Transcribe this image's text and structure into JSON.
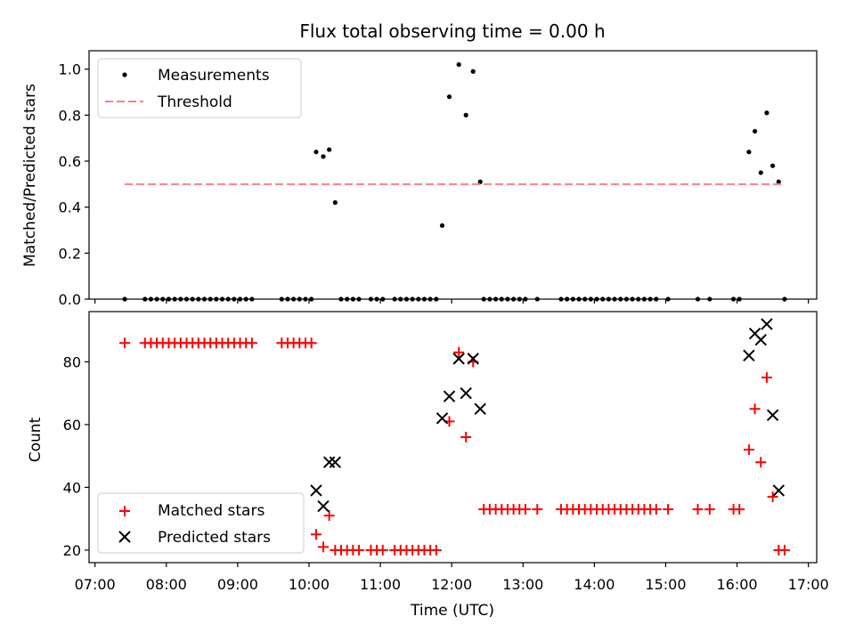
{
  "chart_data": [
    {
      "type": "scatter",
      "title": "Flux total observing time = 0.00 h",
      "xlabel": "",
      "ylabel": "Matched/Predicted stars",
      "xlim": [
        "06:55",
        "17:07"
      ],
      "ylim": [
        0,
        1.08
      ],
      "yticks": [
        "0.0",
        "0.2",
        "0.4",
        "0.6",
        "0.8",
        "1.0"
      ],
      "yticks_values": [
        0,
        0.2,
        0.4,
        0.6,
        0.8,
        1.0
      ],
      "legend": "top-left",
      "grid": false,
      "series": [
        {
          "name": "Measurements",
          "marker": "dot",
          "color": "#000000",
          "points": [
            [
              "07:25",
              0
            ],
            [
              "07:42",
              0
            ],
            [
              "07:47",
              0
            ],
            [
              "07:52",
              0
            ],
            [
              "07:57",
              0
            ],
            [
              "08:02",
              0
            ],
            [
              "08:07",
              0
            ],
            [
              "08:12",
              0
            ],
            [
              "08:17",
              0
            ],
            [
              "08:22",
              0
            ],
            [
              "08:27",
              0
            ],
            [
              "08:32",
              0
            ],
            [
              "08:37",
              0
            ],
            [
              "08:42",
              0
            ],
            [
              "08:47",
              0
            ],
            [
              "08:52",
              0
            ],
            [
              "08:57",
              0
            ],
            [
              "09:02",
              0
            ],
            [
              "09:07",
              0
            ],
            [
              "09:12",
              0
            ],
            [
              "09:37",
              0
            ],
            [
              "09:42",
              0
            ],
            [
              "09:47",
              0
            ],
            [
              "09:52",
              0
            ],
            [
              "09:57",
              0
            ],
            [
              "10:02",
              0
            ],
            [
              "10:06",
              0.64
            ],
            [
              "10:12",
              0.62
            ],
            [
              "10:17",
              0.65
            ],
            [
              "10:22",
              0.42
            ],
            [
              "10:27",
              0
            ],
            [
              "10:32",
              0
            ],
            [
              "10:37",
              0
            ],
            [
              "10:42",
              0
            ],
            [
              "10:52",
              0
            ],
            [
              "10:57",
              0
            ],
            [
              "11:02",
              0
            ],
            [
              "11:12",
              0
            ],
            [
              "11:17",
              0
            ],
            [
              "11:22",
              0
            ],
            [
              "11:27",
              0
            ],
            [
              "11:32",
              0
            ],
            [
              "11:37",
              0
            ],
            [
              "11:42",
              0
            ],
            [
              "11:47",
              0
            ],
            [
              "11:52",
              0.32
            ],
            [
              "11:58",
              0.88
            ],
            [
              "12:06",
              1.02
            ],
            [
              "12:12",
              0.8
            ],
            [
              "12:18",
              0.99
            ],
            [
              "12:24",
              0.51
            ],
            [
              "12:27",
              0
            ],
            [
              "12:32",
              0
            ],
            [
              "12:37",
              0
            ],
            [
              "12:42",
              0
            ],
            [
              "12:47",
              0
            ],
            [
              "12:52",
              0
            ],
            [
              "12:57",
              0
            ],
            [
              "13:02",
              0
            ],
            [
              "13:12",
              0
            ],
            [
              "13:32",
              0
            ],
            [
              "13:37",
              0
            ],
            [
              "13:42",
              0
            ],
            [
              "13:47",
              0
            ],
            [
              "13:52",
              0
            ],
            [
              "13:57",
              0
            ],
            [
              "14:02",
              0
            ],
            [
              "14:07",
              0
            ],
            [
              "14:12",
              0
            ],
            [
              "14:17",
              0
            ],
            [
              "14:22",
              0
            ],
            [
              "14:27",
              0
            ],
            [
              "14:32",
              0
            ],
            [
              "14:37",
              0
            ],
            [
              "14:42",
              0
            ],
            [
              "14:47",
              0
            ],
            [
              "14:52",
              0
            ],
            [
              "15:02",
              0
            ],
            [
              "15:27",
              0
            ],
            [
              "15:37",
              0
            ],
            [
              "15:57",
              0
            ],
            [
              "16:02",
              0
            ],
            [
              "16:10",
              0.64
            ],
            [
              "16:15",
              0.73
            ],
            [
              "16:20",
              0.55
            ],
            [
              "16:25",
              0.81
            ],
            [
              "16:30",
              0.58
            ],
            [
              "16:35",
              0.51
            ],
            [
              "16:40",
              0
            ]
          ]
        },
        {
          "name": "Threshold",
          "marker": "dashed-line",
          "color": "#ff7f7f",
          "points": [
            [
              "07:25",
              0.5
            ],
            [
              "16:40",
              0.5
            ]
          ]
        }
      ]
    },
    {
      "type": "scatter",
      "title": "",
      "xlabel": "Time (UTC)",
      "ylabel": "Count",
      "xlim": [
        "06:55",
        "17:07"
      ],
      "ylim": [
        16,
        96
      ],
      "xticks": [
        "07:00",
        "08:00",
        "09:00",
        "10:00",
        "11:00",
        "12:00",
        "13:00",
        "14:00",
        "15:00",
        "16:00",
        "17:00"
      ],
      "yticks": [
        "20",
        "40",
        "60",
        "80"
      ],
      "yticks_values": [
        20,
        40,
        60,
        80
      ],
      "legend": "bottom-left",
      "grid": false,
      "series": [
        {
          "name": "Matched stars",
          "marker": "plus",
          "color": "#ff0000",
          "points": [
            [
              "07:25",
              86
            ],
            [
              "07:42",
              86
            ],
            [
              "07:47",
              86
            ],
            [
              "07:52",
              86
            ],
            [
              "07:57",
              86
            ],
            [
              "08:02",
              86
            ],
            [
              "08:07",
              86
            ],
            [
              "08:12",
              86
            ],
            [
              "08:17",
              86
            ],
            [
              "08:22",
              86
            ],
            [
              "08:27",
              86
            ],
            [
              "08:32",
              86
            ],
            [
              "08:37",
              86
            ],
            [
              "08:42",
              86
            ],
            [
              "08:47",
              86
            ],
            [
              "08:52",
              86
            ],
            [
              "08:57",
              86
            ],
            [
              "09:02",
              86
            ],
            [
              "09:07",
              86
            ],
            [
              "09:12",
              86
            ],
            [
              "09:37",
              86
            ],
            [
              "09:42",
              86
            ],
            [
              "09:47",
              86
            ],
            [
              "09:52",
              86
            ],
            [
              "09:57",
              86
            ],
            [
              "10:02",
              86
            ],
            [
              "10:06",
              25
            ],
            [
              "10:12",
              21
            ],
            [
              "10:17",
              31
            ],
            [
              "10:22",
              20
            ],
            [
              "10:27",
              20
            ],
            [
              "10:32",
              20
            ],
            [
              "10:37",
              20
            ],
            [
              "10:42",
              20
            ],
            [
              "10:52",
              20
            ],
            [
              "10:57",
              20
            ],
            [
              "11:02",
              20
            ],
            [
              "11:12",
              20
            ],
            [
              "11:17",
              20
            ],
            [
              "11:22",
              20
            ],
            [
              "11:27",
              20
            ],
            [
              "11:32",
              20
            ],
            [
              "11:37",
              20
            ],
            [
              "11:42",
              20
            ],
            [
              "11:47",
              20
            ],
            [
              "11:58",
              61
            ],
            [
              "12:06",
              83
            ],
            [
              "12:12",
              56
            ],
            [
              "12:18",
              80
            ],
            [
              "12:27",
              33
            ],
            [
              "12:32",
              33
            ],
            [
              "12:37",
              33
            ],
            [
              "12:42",
              33
            ],
            [
              "12:47",
              33
            ],
            [
              "12:52",
              33
            ],
            [
              "12:57",
              33
            ],
            [
              "13:02",
              33
            ],
            [
              "13:12",
              33
            ],
            [
              "13:32",
              33
            ],
            [
              "13:37",
              33
            ],
            [
              "13:42",
              33
            ],
            [
              "13:47",
              33
            ],
            [
              "13:52",
              33
            ],
            [
              "13:57",
              33
            ],
            [
              "14:02",
              33
            ],
            [
              "14:07",
              33
            ],
            [
              "14:12",
              33
            ],
            [
              "14:17",
              33
            ],
            [
              "14:22",
              33
            ],
            [
              "14:27",
              33
            ],
            [
              "14:32",
              33
            ],
            [
              "14:37",
              33
            ],
            [
              "14:42",
              33
            ],
            [
              "14:47",
              33
            ],
            [
              "14:52",
              33
            ],
            [
              "15:02",
              33
            ],
            [
              "15:27",
              33
            ],
            [
              "15:37",
              33
            ],
            [
              "15:57",
              33
            ],
            [
              "16:02",
              33
            ],
            [
              "16:10",
              52
            ],
            [
              "16:15",
              65
            ],
            [
              "16:20",
              48
            ],
            [
              "16:25",
              75
            ],
            [
              "16:30",
              37
            ],
            [
              "16:35",
              20
            ],
            [
              "16:40",
              20
            ]
          ]
        },
        {
          "name": "Predicted stars",
          "marker": "x",
          "color": "#000000",
          "points": [
            [
              "10:06",
              39
            ],
            [
              "10:12",
              34
            ],
            [
              "10:17",
              48
            ],
            [
              "10:22",
              48
            ],
            [
              "11:52",
              62
            ],
            [
              "11:58",
              69
            ],
            [
              "12:06",
              81
            ],
            [
              "12:12",
              70
            ],
            [
              "12:18",
              81
            ],
            [
              "12:24",
              65
            ],
            [
              "16:10",
              82
            ],
            [
              "16:15",
              89
            ],
            [
              "16:20",
              87
            ],
            [
              "16:25",
              92
            ],
            [
              "16:30",
              63
            ],
            [
              "16:35",
              39
            ]
          ]
        }
      ]
    }
  ]
}
